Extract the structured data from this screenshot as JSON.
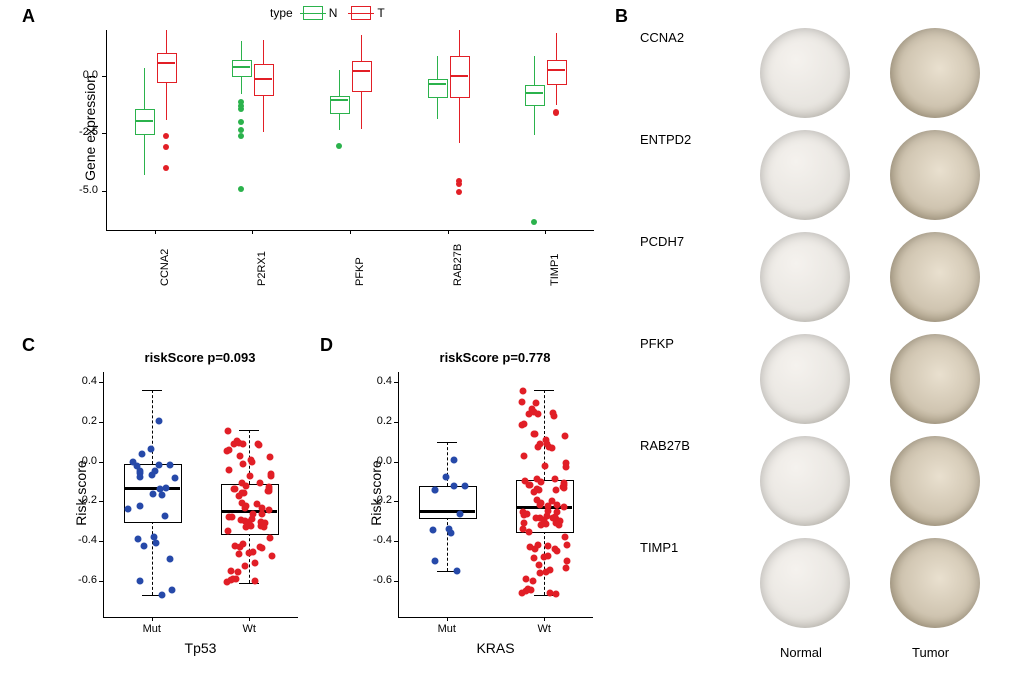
{
  "letters": {
    "A": "A",
    "B": "B",
    "C": "C",
    "D": "D"
  },
  "colors": {
    "N": "#2bb24c",
    "T": "#e21f26",
    "mut": "#2649a9",
    "wt": "#e11e26",
    "axis": "#000000",
    "panel_bg": "#ffffff",
    "grid": "#dcdcdc"
  },
  "panelA": {
    "ylabel": "Gene expression",
    "legend_title": "type",
    "legend": {
      "N": "N",
      "T": "T"
    },
    "ylim": [
      -6.7,
      2.0
    ],
    "yticks": [
      -5.0,
      -2.5,
      0.0
    ],
    "ytick_labels": [
      "-5.0",
      "-2.5",
      "0.0"
    ],
    "genes": [
      "CCNA2",
      "P2RX1",
      "PFKP",
      "RAB27B",
      "TIMP1"
    ],
    "boxes": [
      {
        "gene": "CCNA2",
        "group": "N",
        "q1": -2.5,
        "median": -1.95,
        "q3": -1.45,
        "lowW": -4.3,
        "highW": 0.35,
        "outliers": []
      },
      {
        "gene": "CCNA2",
        "group": "T",
        "q1": -0.2,
        "median": 0.55,
        "q3": 1.0,
        "lowW": -1.9,
        "highW": 2.0,
        "outliers": [
          -4.0,
          -3.1,
          -2.6
        ]
      },
      {
        "gene": "P2RX1",
        "group": "N",
        "q1": 0.05,
        "median": 0.4,
        "q3": 0.7,
        "lowW": -0.8,
        "highW": 1.5,
        "outliers": [
          -2.6,
          -2.35,
          -2.0,
          -1.45,
          -1.3,
          -1.15,
          -4.9
        ]
      },
      {
        "gene": "P2RX1",
        "group": "T",
        "q1": -0.8,
        "median": -0.15,
        "q3": 0.5,
        "lowW": -2.45,
        "highW": 1.55,
        "outliers": []
      },
      {
        "gene": "PFKP",
        "group": "N",
        "q1": -1.55,
        "median": -1.05,
        "q3": -0.85,
        "lowW": -2.35,
        "highW": 0.25,
        "outliers": [
          -3.05
        ]
      },
      {
        "gene": "PFKP",
        "group": "T",
        "q1": -0.6,
        "median": 0.2,
        "q3": 0.65,
        "lowW": -2.3,
        "highW": 1.8,
        "outliers": []
      },
      {
        "gene": "RAB27B",
        "group": "N",
        "q1": -0.85,
        "median": -0.35,
        "q3": -0.15,
        "lowW": -1.85,
        "highW": 0.85,
        "outliers": []
      },
      {
        "gene": "RAB27B",
        "group": "T",
        "q1": -0.85,
        "median": 0.0,
        "q3": 0.85,
        "lowW": -2.9,
        "highW": 2.0,
        "outliers": [
          -4.55,
          -4.7,
          -5.05
        ]
      },
      {
        "gene": "TIMP1",
        "group": "N",
        "q1": -1.2,
        "median": -0.75,
        "q3": -0.4,
        "lowW": -2.55,
        "highW": 0.85,
        "outliers": [
          -6.35
        ]
      },
      {
        "gene": "TIMP1",
        "group": "T",
        "q1": -0.3,
        "median": 0.25,
        "q3": 0.7,
        "lowW": -1.25,
        "highW": 1.85,
        "outliers": [
          -1.55,
          -1.6
        ]
      }
    ]
  },
  "panelC": {
    "title": "riskScore p=0.093",
    "ylabel": "Risk score",
    "xlabel": "Tp53",
    "ylim": [
      -0.78,
      0.45
    ],
    "yticks": [
      -0.6,
      -0.4,
      -0.2,
      0.0,
      0.2,
      0.4
    ],
    "ytick_labels": [
      "-0.6",
      "-0.4",
      "-0.2",
      "0.0",
      "0.2",
      "0.4"
    ],
    "groups": [
      "Mut",
      "Wt"
    ],
    "boxes": [
      {
        "group": "Mut",
        "q1": -0.3,
        "median": -0.13,
        "q3": -0.01,
        "lowW": -0.67,
        "highW": 0.36,
        "color": "mut",
        "n": 28
      },
      {
        "group": "Wt",
        "q1": -0.36,
        "median": -0.25,
        "q3": -0.11,
        "lowW": -0.61,
        "highW": 0.16,
        "color": "wt",
        "n": 70
      }
    ]
  },
  "panelD": {
    "title": "riskScore p=0.778",
    "ylabel": "Risk score",
    "xlabel": "KRAS",
    "ylim": [
      -0.78,
      0.45
    ],
    "yticks": [
      -0.6,
      -0.4,
      -0.2,
      0.0,
      0.2,
      0.4
    ],
    "ytick_labels": [
      "-0.6",
      "-0.4",
      "-0.2",
      "0.0",
      "0.2",
      "0.4"
    ],
    "groups": [
      "Mut",
      "Wt"
    ],
    "boxes": [
      {
        "group": "Mut",
        "q1": -0.28,
        "median": -0.25,
        "q3": -0.12,
        "lowW": -0.55,
        "highW": 0.1,
        "color": "mut",
        "n": 12
      },
      {
        "group": "Wt",
        "q1": -0.35,
        "median": -0.23,
        "q3": -0.09,
        "lowW": -0.67,
        "highW": 0.36,
        "color": "wt",
        "n": 90
      }
    ]
  },
  "panelB": {
    "col_labels": {
      "normal": "Normal",
      "tumor": "Tumor"
    },
    "rows": [
      "CCNA2",
      "ENTPD2",
      "PCDH7",
      "PFKP",
      "RAB27B",
      "TIMP1"
    ],
    "normal_bg": "#e8e5e0",
    "tumor_bg": "#cfc4b0"
  }
}
